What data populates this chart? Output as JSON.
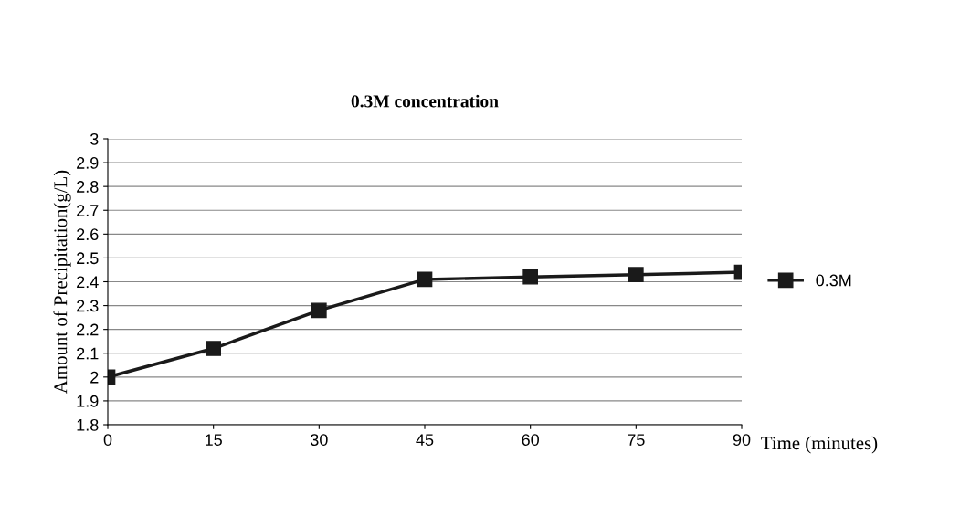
{
  "chart_data": {
    "type": "line",
    "title": "0.3M concentration",
    "xlabel": "Time (minutes)",
    "ylabel": "Amount of Precipitation(g/L)",
    "x": [
      0,
      15,
      30,
      45,
      60,
      75,
      90
    ],
    "series": [
      {
        "name": "0.3M",
        "color": "#1a1a1a",
        "values": [
          2.0,
          2.12,
          2.28,
          2.41,
          2.42,
          2.43,
          2.44
        ]
      }
    ],
    "xlim": [
      0,
      90
    ],
    "xticks": [
      0,
      15,
      30,
      45,
      60,
      75,
      90
    ],
    "ylim": [
      1.8,
      3
    ],
    "yticks": [
      1.8,
      1.9,
      2,
      2.1,
      2.2,
      2.3,
      2.4,
      2.5,
      2.6,
      2.7,
      2.8,
      2.9,
      3
    ],
    "grid": "y",
    "legend": "right",
    "marker": "square",
    "line_style": "solid"
  }
}
